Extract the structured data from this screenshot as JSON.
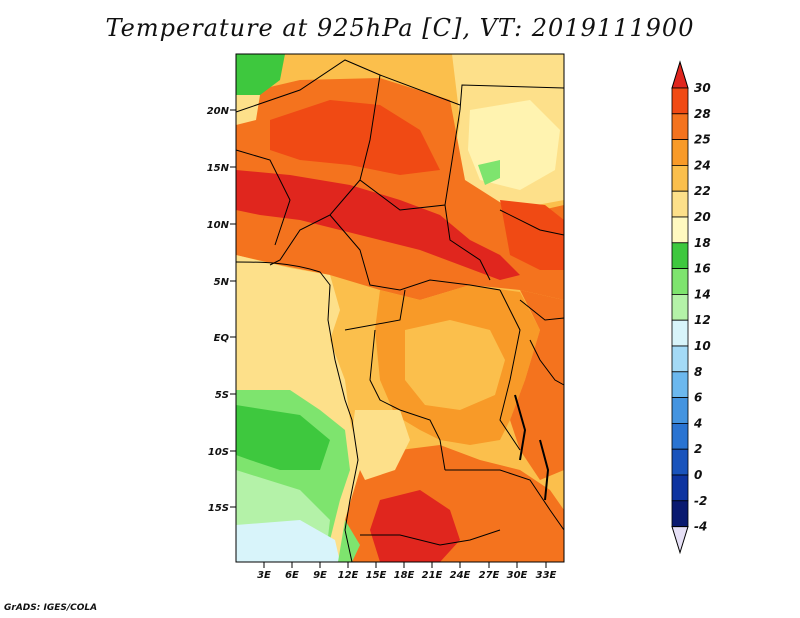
{
  "title": "Temperature at 925hPa [C], VT: 2019111900",
  "footer": "GrADS: IGES/COLA",
  "map": {
    "lat_labels": [
      "20N",
      "15N",
      "10N",
      "5N",
      "EQ",
      "5S",
      "10S",
      "15S"
    ],
    "lon_labels": [
      "3E",
      "6E",
      "9E",
      "12E",
      "15E",
      "18E",
      "21E",
      "24E",
      "27E",
      "30E",
      "33E"
    ]
  },
  "colorbar": {
    "labels": [
      "30",
      "28",
      "25",
      "24",
      "22",
      "20",
      "18",
      "16",
      "14",
      "12",
      "10",
      "8",
      "6",
      "4",
      "2",
      "0",
      "-2",
      "-4"
    ],
    "colors": {
      "c30": "#e0261e",
      "c28": "#f04a14",
      "c25": "#f4731e",
      "c24": "#f89a28",
      "c22": "#fbbf4c",
      "c20": "#fde08a",
      "c18": "#fff9c0",
      "c16": "#3ec83e",
      "c14": "#7ee46e",
      "c12": "#b4f2a8",
      "c10": "#d8f4fa",
      "c8": "#a4daf6",
      "c6": "#6cb8ee",
      "c4": "#4494e0",
      "c2": "#2a74d2",
      "c0": "#1a54bc",
      "cm2": "#0e34a0",
      "cm4": "#0a1a70",
      "below": "#e6e0f6"
    }
  }
}
